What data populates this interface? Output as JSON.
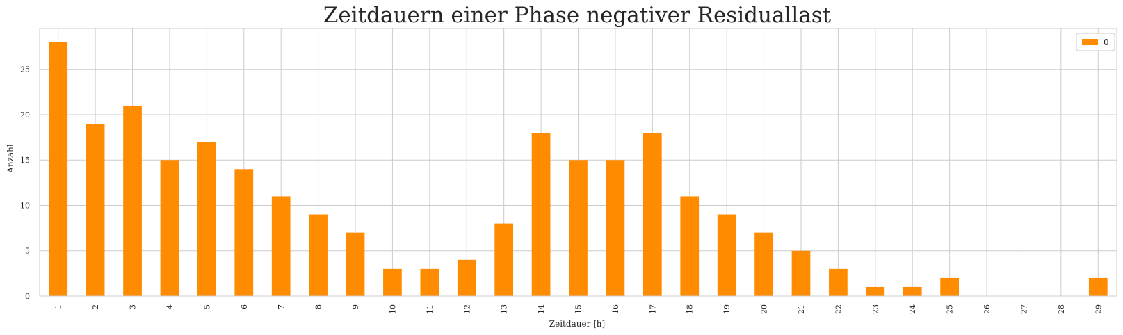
{
  "chart_data": {
    "type": "bar",
    "title": "Zeitdauern einer Phase negativer Residuallast",
    "xlabel": "Zeitdauer [h]",
    "ylabel": "Anzahl",
    "categories": [
      "1",
      "2",
      "3",
      "4",
      "5",
      "6",
      "7",
      "8",
      "9",
      "10",
      "11",
      "12",
      "13",
      "14",
      "15",
      "16",
      "17",
      "18",
      "19",
      "20",
      "21",
      "22",
      "23",
      "24",
      "25",
      "26",
      "27",
      "28",
      "29"
    ],
    "series": [
      {
        "name": "0",
        "color": "#ff8c00",
        "values": [
          28,
          19,
          21,
          15,
          17,
          14,
          11,
          9,
          7,
          3,
          3,
          4,
          8,
          18,
          15,
          15,
          18,
          11,
          9,
          7,
          5,
          3,
          1,
          1,
          2,
          0,
          0,
          0,
          2
        ]
      }
    ],
    "ylim": [
      0,
      29.5
    ],
    "yticks": [
      0,
      5,
      10,
      15,
      20,
      25
    ],
    "grid": true,
    "legend_position": "top-right",
    "colors": {
      "grid": "#cccccc",
      "frame": "#cccccc",
      "bar": "#ff8c00",
      "text": "#262626"
    }
  }
}
